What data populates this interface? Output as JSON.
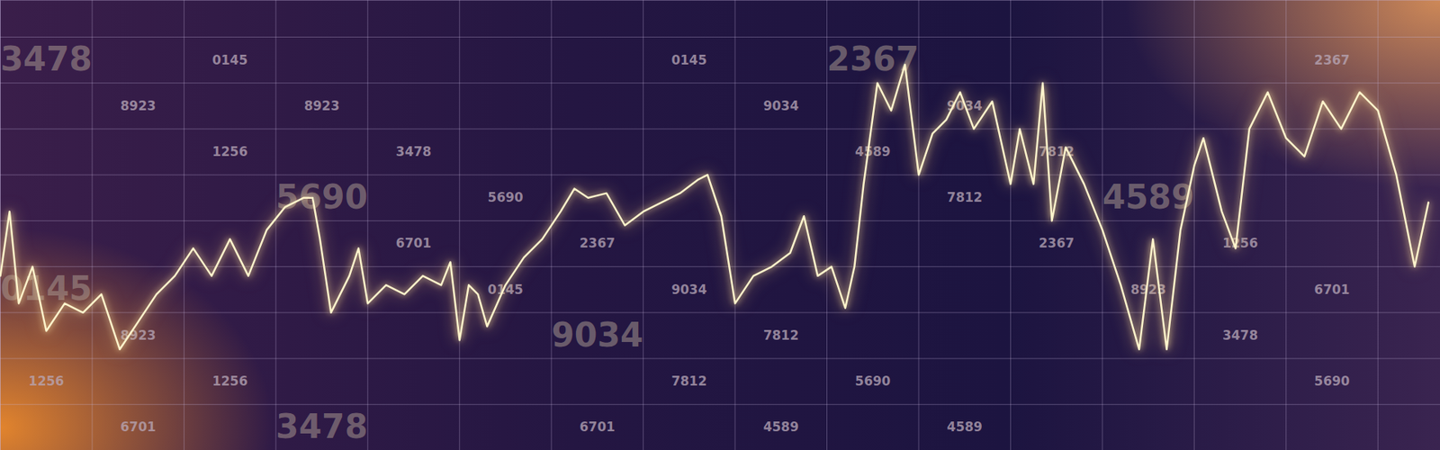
{
  "chart_data": {
    "type": "line",
    "x": [
      0,
      10,
      20,
      35,
      50,
      70,
      90,
      110,
      130,
      150,
      170,
      190,
      210,
      230,
      250,
      270,
      290,
      310,
      330,
      340,
      348,
      360,
      380,
      390,
      400,
      420,
      440,
      460,
      480,
      490,
      500,
      510,
      520,
      530,
      550,
      570,
      590,
      610,
      625,
      640,
      660,
      680,
      700,
      720,
      740,
      760,
      770,
      785,
      800,
      820,
      840,
      860,
      875,
      890,
      905,
      920,
      930,
      940,
      955,
      970,
      985,
      1000,
      1015,
      1030,
      1045,
      1060,
      1080,
      1100,
      1110,
      1125,
      1135,
      1145,
      1160,
      1180,
      1200,
      1220,
      1240,
      1255,
      1270,
      1285,
      1300,
      1310,
      1330,
      1345,
      1360,
      1380,
      1400,
      1420,
      1440,
      1460,
      1480,
      1500,
      1520,
      1540,
      1555
    ],
    "values": [
      190,
      260,
      160,
      200,
      130,
      160,
      150,
      170,
      110,
      140,
      170,
      190,
      220,
      190,
      230,
      190,
      240,
      265,
      275,
      275,
      230,
      150,
      190,
      220,
      160,
      180,
      170,
      190,
      180,
      205,
      120,
      180,
      170,
      135,
      180,
      210,
      230,
      260,
      285,
      275,
      280,
      245,
      260,
      270,
      280,
      295,
      300,
      255,
      160,
      190,
      200,
      215,
      255,
      190,
      200,
      155,
      200,
      290,
      400,
      370,
      420,
      300,
      345,
      360,
      390,
      350,
      380,
      290,
      350,
      290,
      400,
      250,
      330,
      290,
      240,
      180,
      110,
      230,
      110,
      240,
      310,
      340,
      260,
      220,
      350,
      390,
      340,
      320,
      380,
      350,
      390,
      370,
      300,
      200,
      270
    ],
    "color": "#fff4cc",
    "xlim": [
      0,
      1568
    ],
    "ylim": [
      0,
      490
    ],
    "xticks": [
      0,
      100,
      200,
      300,
      400,
      500,
      600,
      700,
      800,
      900,
      1000,
      1100,
      1200,
      1300,
      1400,
      1500
    ],
    "yticks": [
      0,
      50,
      100,
      150,
      200,
      250,
      300,
      350,
      400,
      450
    ],
    "grid": true,
    "tick_labels": false,
    "annotations": [
      "3478",
      "4589",
      "1256",
      "5690",
      "8923",
      "7812",
      "0145",
      "9034",
      "6701",
      "2367",
      "1256",
      "5690",
      "4589",
      "3478",
      "7812",
      "8923",
      "9034",
      "0145",
      "2367",
      "6701",
      "4589",
      "1256",
      "7812",
      "5690",
      "9034",
      "3478",
      "0145",
      "8923",
      "6701",
      "2367",
      "5690",
      "7812",
      "1256",
      "4589",
      "8923",
      "9034",
      "3478",
      "0145",
      "2367",
      "6701"
    ]
  }
}
